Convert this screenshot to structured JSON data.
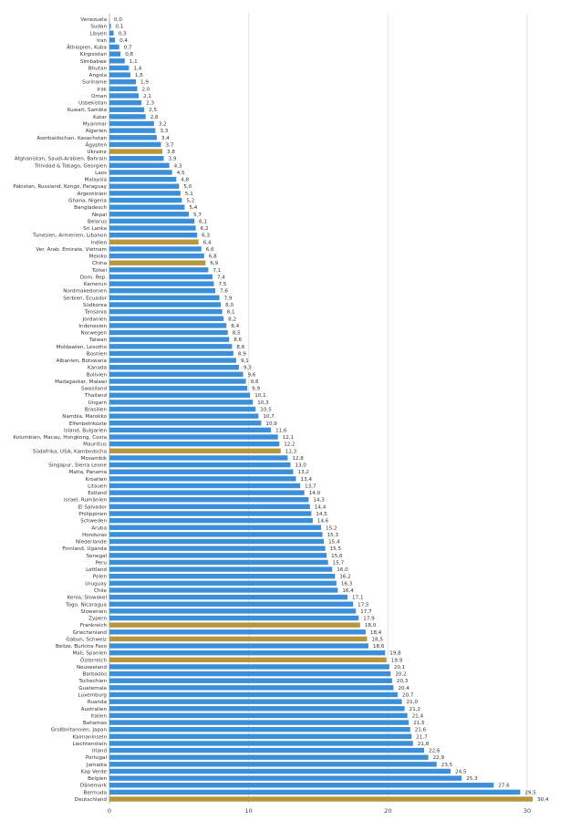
{
  "chart_data": {
    "type": "bar",
    "orientation": "horizontal",
    "title": "",
    "xlabel": "",
    "ylabel": "",
    "xlim": [
      0,
      30
    ],
    "xticks": [
      0,
      10,
      20,
      30
    ],
    "grid": "vertical",
    "legend": "none",
    "colors": {
      "default": "#3b8fd8",
      "highlight": "#b8963c",
      "grid": "#e4e4e4"
    },
    "categories": [
      "Venezuela",
      "Sudan",
      "Libyen",
      "Iran",
      "Äthiopien, Kuba",
      "Kirgisistan",
      "Simbabwe",
      "Bhutan",
      "Angola",
      "Suriname",
      "Irak",
      "Oman",
      "Usbekistan",
      "Kuwait, Sambia",
      "Katar",
      "Myanmar",
      "Algerien",
      "Aserbaidschan, Kasachstan",
      "Ägypten",
      "Ukraine",
      "Afghanistan, Saudi-Arabien, Bahrain",
      "Trinidad & Tobago, Georgien",
      "Laos",
      "Malaysia",
      "Pakistan, Russland, Kongo, Paraguay",
      "Argentinien",
      "Ghana, Nigeria",
      "Bangladesch",
      "Nepal",
      "Belarus",
      "Sri Lanka",
      "Tunesien, Armenien, Libanon",
      "Indien",
      "Ver. Arab. Emirate, Vietnam",
      "Mexiko",
      "China",
      "Türkei",
      "Dom. Rep.",
      "Kamerun",
      "Nordmakedonien",
      "Serbien, Ecuador",
      "Südkorea",
      "Tansania",
      "Jordanien",
      "Indonesien",
      "Norwegen",
      "Taiwan",
      "Moldawien, Lesotho",
      "Bosnien",
      "Albanien, Botswana",
      "Kanada",
      "Bolivien",
      "Madagaskar, Malawi",
      "Swasiland",
      "Thailand",
      "Ungarn",
      "Brasilien",
      "Nambia, Marokko",
      "Elfenbeinküste",
      "Island, Bulgarien",
      "Kolumbien, Macau, Hongkong, Costa",
      "Mauritius",
      "Südafrika, USA, Kambodscha",
      "Mosambik",
      "Singapur, Sierra Leone",
      "Malta, Panama",
      "Kroatien",
      "Litauen",
      "Estland",
      "Israel, Rumänien",
      "El Salvador",
      "Philippinen",
      "Schweden",
      "Aruba",
      "Honduras",
      "Niederlande",
      "Finnland, Uganda",
      "Senegal",
      "Peru",
      "Lettland",
      "Polen",
      "Uruguay",
      "Chile",
      "Kenia, Slowakei",
      "Togo, Nicaragua",
      "Slowenien",
      "Zypern",
      "Frankreich",
      "Griechenland",
      "Gabun, Schweiz",
      "Belize, Burkina Faso",
      "Mali, Spanien",
      "Österreich",
      "Neuseeland",
      "Barbados",
      "Tschechien",
      "Guatemala",
      "Luxemburg",
      "Ruanda",
      "Australien",
      "Italien",
      "Bahamas",
      "Großbritannien, Japan",
      "Kaimaninseln",
      "Liechtenstein",
      "Irland",
      "Portugal",
      "Jamaika",
      "Kap Verde",
      "Belgien",
      "Dänemark",
      "Bermuda",
      "Deutschland"
    ],
    "values": [
      0.0,
      0.1,
      0.3,
      0.4,
      0.7,
      0.8,
      1.1,
      1.4,
      1.5,
      1.9,
      2.0,
      2.1,
      2.3,
      2.5,
      2.6,
      3.2,
      3.3,
      3.4,
      3.7,
      3.8,
      3.9,
      4.3,
      4.5,
      4.8,
      5.0,
      5.1,
      5.2,
      5.4,
      5.7,
      6.1,
      6.2,
      6.3,
      6.4,
      6.6,
      6.8,
      6.9,
      7.1,
      7.4,
      7.5,
      7.6,
      7.9,
      8.0,
      8.1,
      8.2,
      8.4,
      8.5,
      8.6,
      8.8,
      8.9,
      9.1,
      9.3,
      9.6,
      9.8,
      9.9,
      10.1,
      10.3,
      10.5,
      10.7,
      10.9,
      11.6,
      12.1,
      12.2,
      12.3,
      12.8,
      13.0,
      13.2,
      13.4,
      13.7,
      14.0,
      14.3,
      14.4,
      14.5,
      14.6,
      15.2,
      15.3,
      15.4,
      15.5,
      15.6,
      15.7,
      16.0,
      16.2,
      16.3,
      16.4,
      17.1,
      17.5,
      17.7,
      17.9,
      18.0,
      18.4,
      18.5,
      18.6,
      19.8,
      19.9,
      20.1,
      20.2,
      20.3,
      20.4,
      20.7,
      21.0,
      21.2,
      21.4,
      21.5,
      21.6,
      21.7,
      21.8,
      22.6,
      22.9,
      23.5,
      24.5,
      25.3,
      27.6,
      29.5,
      30.4
    ],
    "value_labels": [
      "0,0",
      "0,1",
      "0,3",
      "0,4",
      "0,7",
      "0,8",
      "1,1",
      "1,4",
      "1,5",
      "1,9",
      "2,0",
      "2,1",
      "2,3",
      "2,5",
      "2,6",
      "3,2",
      "3,3",
      "3,4",
      "3,7",
      "3,8",
      "3,9",
      "4,3",
      "4,5",
      "4,8",
      "5,0",
      "5,1",
      "5,2",
      "5,4",
      "5,7",
      "6,1",
      "6,2",
      "6,3",
      "6,4",
      "6,6",
      "6,8",
      "6,9",
      "7,1",
      "7,4",
      "7,5",
      "7,6",
      "7,9",
      "8,0",
      "8,1",
      "8,2",
      "8,4",
      "8,5",
      "8,6",
      "8,8",
      "8,9",
      "9,1",
      "9,3",
      "9,6",
      "9,8",
      "9,9",
      "10,1",
      "10,3",
      "10,5",
      "10,7",
      "10,9",
      "11,6",
      "12,1",
      "12,2",
      "12,3",
      "12,8",
      "13,0",
      "13,2",
      "13,4",
      "13,7",
      "14,0",
      "14,3",
      "14,4",
      "14,5",
      "14,6",
      "15,2",
      "15,3",
      "15,4",
      "15,5",
      "15,6",
      "15,7",
      "16,0",
      "16,2",
      "16,3",
      "16,4",
      "17,1",
      "17,5",
      "17,7",
      "17,9",
      "18,0",
      "18,4",
      "18,5",
      "18,6",
      "19,8",
      "19,9",
      "20,1",
      "20,2",
      "20,3",
      "20,4",
      "20,7",
      "21,0",
      "21,2",
      "21,4",
      "21,5",
      "21,6",
      "21,7",
      "21,8",
      "22,6",
      "22,9",
      "23,5",
      "24,5",
      "25,3",
      "27,6",
      "29,5",
      "30,4"
    ],
    "highlighted": [
      "Ukraine",
      "Indien",
      "China",
      "Südafrika, USA, Kambodscha",
      "Frankreich",
      "Gabun, Schweiz",
      "Österreich",
      "Deutschland"
    ]
  }
}
